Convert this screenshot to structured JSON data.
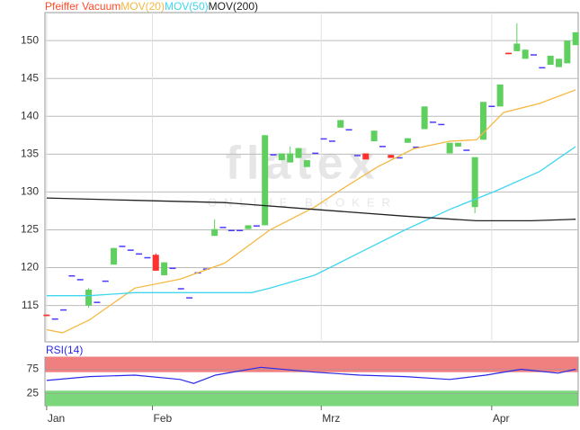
{
  "chart_data": [
    {
      "type": "candlestick",
      "watermark": "flatex",
      "watermark_sub": "ONLINE BROKER",
      "x": [
        0,
        1,
        2,
        3,
        4,
        5,
        6,
        7,
        8,
        9,
        10,
        11,
        12,
        13,
        14,
        15,
        16,
        17,
        18,
        19,
        20,
        21,
        22,
        23,
        24,
        25,
        26,
        27,
        28,
        29,
        30,
        31,
        32,
        33,
        34,
        35,
        36,
        37,
        38,
        39,
        40,
        41,
        42,
        43,
        44,
        45,
        46,
        47,
        48,
        49,
        50,
        51,
        52,
        53,
        54,
        55,
        56,
        57,
        58,
        59,
        60,
        61,
        62,
        63
      ],
      "xlim": [
        -0.2,
        63.3
      ],
      "xticks": [
        {
          "value": 0,
          "label": "Jan"
        },
        {
          "value": 12.6,
          "label": "Feb"
        },
        {
          "value": 32.7,
          "label": "Mrz"
        },
        {
          "value": 53.0,
          "label": "Apr"
        }
      ],
      "ylim": [
        110.2,
        153.7
      ],
      "yticks": [
        115,
        120,
        125,
        130,
        135,
        140,
        145,
        150
      ],
      "grid": true,
      "series": [
        {
          "name": "Pfeiffer Vacuum",
          "color": "#ff4b2b",
          "up_color": "#5fcf5f",
          "down_color": "#ff3030",
          "flat_color": "#4a3aff",
          "open": [
            113.8,
            113.3,
            114.5,
            119,
            118.5,
            115,
            115.5,
            118.3,
            120.4,
            122.9,
            122.4,
            121.9,
            121.4,
            121.7,
            119,
            120,
            117.3,
            116.1,
            119.4,
            119.9,
            124.2,
            125.4,
            125,
            125,
            125.1,
            125.6,
            125.6,
            135,
            134.2,
            133.9,
            134.5,
            133.3,
            135.2,
            137.1,
            136.8,
            138.5,
            138.3,
            134.9,
            135.1,
            136.7,
            136.1,
            134.9,
            134.6,
            136.5,
            136,
            138.3,
            139.3,
            139,
            135.1,
            136,
            135.6,
            128,
            136.9,
            141.4,
            141.3,
            148.4,
            148.6,
            147.6,
            148.2,
            146.5,
            146.8,
            146.5,
            147,
            149.4
          ],
          "high": [
            113.8,
            113.3,
            114.5,
            119,
            118.5,
            117.3,
            115.5,
            118.3,
            122.6,
            122.9,
            122.4,
            121.9,
            121.4,
            121.9,
            120.7,
            120,
            117.3,
            116.1,
            119.4,
            119.9,
            126.4,
            125.4,
            125,
            125,
            125.6,
            125.6,
            137.5,
            135,
            135.1,
            136,
            135.8,
            134.2,
            135.2,
            137.1,
            136.8,
            139.5,
            138.3,
            134.9,
            135.1,
            138.1,
            136.1,
            134.9,
            134.6,
            137.1,
            136,
            141.3,
            139.3,
            139,
            136.5,
            136.5,
            135.6,
            134.6,
            141.9,
            141.4,
            144.2,
            148.4,
            152.3,
            148.8,
            148.2,
            146.5,
            148,
            147.6,
            150,
            151.1
          ],
          "low": [
            113.6,
            113.3,
            114.5,
            119,
            118.5,
            114.7,
            115.5,
            118.3,
            120.4,
            122.9,
            122.4,
            121.9,
            121.4,
            119.6,
            119,
            120,
            117.3,
            116.1,
            119.4,
            119.9,
            124.2,
            125.4,
            125,
            125,
            125.1,
            125.6,
            125.6,
            135,
            134.2,
            133.9,
            134.5,
            133.3,
            135.2,
            137.1,
            136.8,
            138.5,
            138.3,
            134.9,
            134.3,
            136.7,
            136.1,
            134.5,
            134.6,
            136.5,
            136,
            138.3,
            139.3,
            139,
            135.1,
            136,
            135.6,
            127.2,
            136.9,
            141.4,
            141.3,
            148.2,
            148.6,
            147.6,
            148.2,
            146.5,
            146.8,
            146.5,
            147,
            149.4
          ],
          "close": [
            113.6,
            113.3,
            114.5,
            119,
            118.5,
            117.1,
            115.5,
            118.3,
            122.6,
            122.9,
            122.4,
            121.9,
            121.4,
            119.6,
            120.7,
            120,
            117.3,
            116.1,
            119.4,
            119.9,
            125.1,
            125.4,
            125,
            125,
            125.6,
            125.6,
            137.5,
            135,
            135.1,
            135.1,
            135.8,
            134.2,
            135.2,
            137.1,
            136.8,
            139.5,
            138.3,
            134.9,
            134.3,
            138.1,
            136.1,
            134.5,
            134.6,
            137.1,
            136,
            141.3,
            139.3,
            139,
            136.5,
            136.5,
            135.6,
            134.6,
            141.9,
            141.4,
            144.2,
            148.2,
            149.6,
            148.8,
            148.2,
            146.5,
            148,
            147.6,
            150,
            151.1
          ]
        },
        {
          "name": "MOV(20)",
          "color": "#f5b841",
          "x": [
            0,
            1.9,
            5.1,
            10.5,
            15.9,
            21.2,
            26.6,
            31.9,
            35.2,
            39.4,
            43.7,
            48,
            51.2,
            54.4,
            58.7,
            63
          ],
          "values": [
            111.8,
            111.4,
            113.1,
            117.3,
            118.5,
            120.6,
            125,
            128,
            130.4,
            133.3,
            135.7,
            136.7,
            136.9,
            140.5,
            141.7,
            143.5
          ]
        },
        {
          "name": "MOV(50)",
          "color": "#3fd6f0",
          "x": [
            0,
            5.1,
            10.5,
            15.9,
            24.4,
            26.6,
            31.9,
            37.3,
            42.7,
            48,
            53.4,
            58.7,
            63
          ],
          "values": [
            116.3,
            116.3,
            116.7,
            116.7,
            116.7,
            117.3,
            119,
            122,
            125,
            127.7,
            130.1,
            132.7,
            136
          ]
        },
        {
          "name": "MOV(200)",
          "color": "#222222",
          "x": [
            0,
            10.5,
            21.2,
            31.9,
            42.7,
            51.2,
            57.7,
            63
          ],
          "values": [
            129.2,
            128.9,
            128.6,
            127.7,
            126.8,
            126.2,
            126.2,
            126.4
          ]
        }
      ]
    },
    {
      "type": "line",
      "title": "RSI(14)",
      "xlim": [
        -0.2,
        63.3
      ],
      "ylim": [
        0,
        100
      ],
      "yticks": [
        25,
        75
      ],
      "bands": [
        {
          "from": 70,
          "to": 100,
          "color": "#f08080"
        },
        {
          "from": 0,
          "to": 30,
          "color": "#7cd67c"
        }
      ],
      "series": [
        {
          "color": "#2a2ae8",
          "x": [
            0,
            5.1,
            10.5,
            15.9,
            17.5,
            20.1,
            25.5,
            31.9,
            37.3,
            42.7,
            48,
            52.3,
            56.5,
            60.9,
            63
          ],
          "values": [
            52,
            60,
            63,
            54,
            46,
            63,
            79,
            69,
            63,
            60,
            54,
            63,
            75,
            67,
            75
          ]
        }
      ]
    }
  ]
}
